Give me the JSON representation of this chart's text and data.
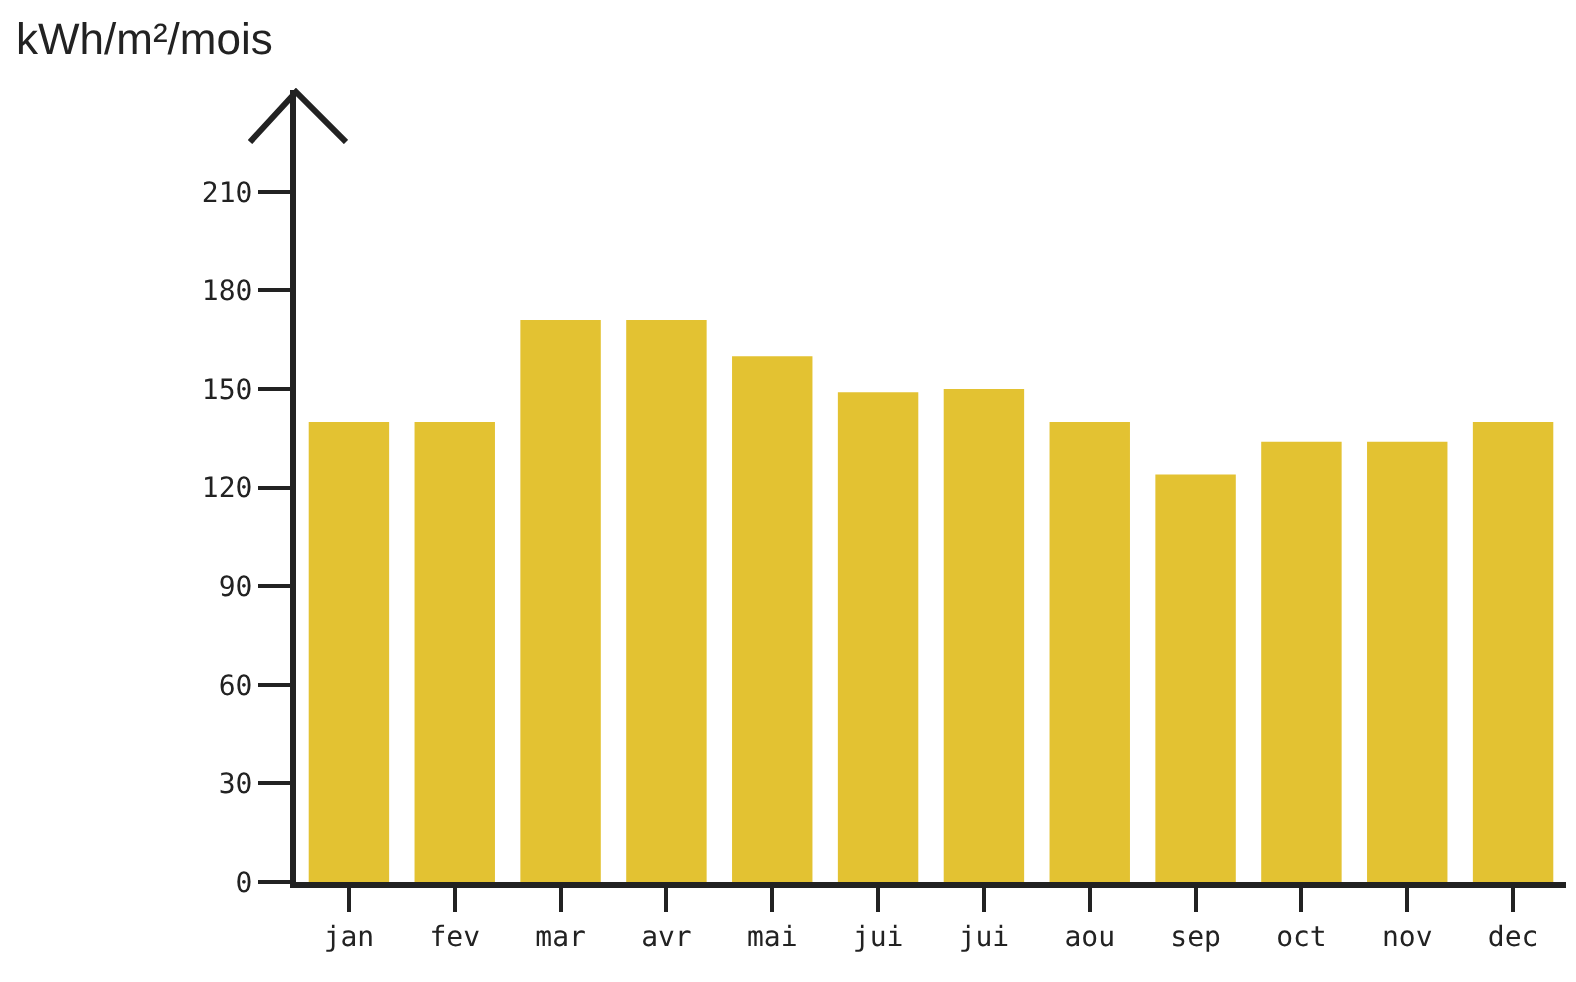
{
  "chart_data": {
    "type": "bar",
    "ylabel": "kWh/m²/mois",
    "categories": [
      "jan",
      "fev",
      "mar",
      "avr",
      "mai",
      "jui",
      "jui",
      "aou",
      "sep",
      "oct",
      "nov",
      "dec"
    ],
    "values": [
      140,
      140,
      171,
      171,
      160,
      149,
      150,
      140,
      124,
      134,
      134,
      140
    ],
    "color": "#e3c232",
    "ylim": [
      0,
      241
    ],
    "yticks": [
      0,
      30,
      60,
      90,
      120,
      150,
      180,
      210
    ],
    "grid": false,
    "legend": false
  }
}
